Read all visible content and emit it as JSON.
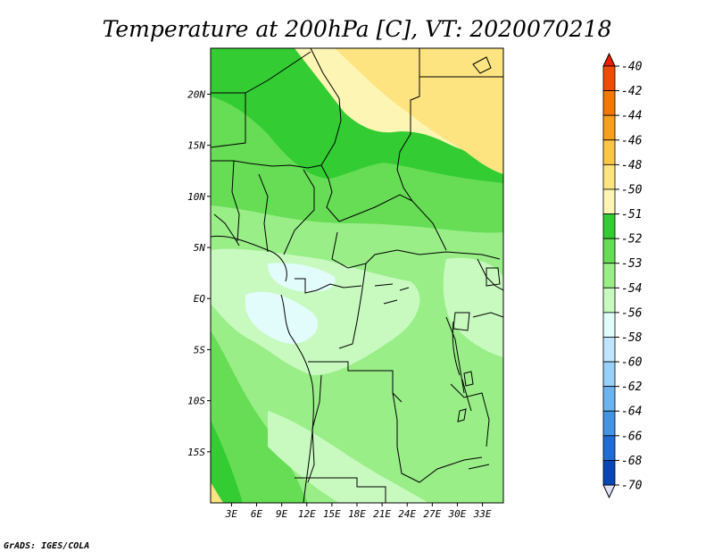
{
  "chart_data": {
    "type": "heatmap",
    "title": "Temperature at 200hPa [C], VT: 2020070218",
    "x_ticks": [
      "3E",
      "6E",
      "9E",
      "12E",
      "15E",
      "18E",
      "21E",
      "24E",
      "27E",
      "30E",
      "33E"
    ],
    "x_tick_values": [
      3,
      6,
      9,
      12,
      15,
      18,
      21,
      24,
      27,
      30,
      33
    ],
    "y_ticks": [
      "20N",
      "15N",
      "10N",
      "5N",
      "EQ",
      "5S",
      "10S",
      "15S"
    ],
    "y_tick_values": [
      20,
      15,
      10,
      5,
      0,
      -5,
      -10,
      -15
    ],
    "xlim": [
      0.5,
      35.5
    ],
    "ylim": [
      -20,
      24.5
    ],
    "colorbar": {
      "orientation": "vertical",
      "labels": [
        "-40",
        "-42",
        "-44",
        "-46",
        "-48",
        "-50",
        "-51",
        "-52",
        "-53",
        "-54",
        "-56",
        "-58",
        "-60",
        "-62",
        "-64",
        "-66",
        "-68",
        "-70"
      ],
      "colors": [
        "#e81e00",
        "#f04c00",
        "#f47800",
        "#f8a01c",
        "#fbc546",
        "#fde480",
        "#fdf5b4",
        "#33cc33",
        "#66dd55",
        "#99ee88",
        "#c8fac0",
        "#e2fcfc",
        "#bfe6fc",
        "#98d0f8",
        "#6cb4f0",
        "#4494e4",
        "#1e6cd4",
        "#0846b4",
        "#0a0a6e"
      ],
      "extend_top_color": "#e81e00",
      "extend_bottom_color": "#e2e2f6"
    },
    "regions": [
      {
        "value_bin": "-51 to -50",
        "color": "#fdf5b4",
        "area": "Sahara north of ~17N, central longitudes"
      },
      {
        "value_bin": "-50 to -48",
        "color": "#fde480",
        "area": "northeast corner, north of ~15N, east of ~23E"
      },
      {
        "value_bin": "-52 to -51",
        "color": "#33cc33",
        "area": "Sahel belt ~12N to 20N"
      },
      {
        "value_bin": "-53 to -52",
        "color": "#66dd55",
        "area": "~8N to 14N and southwest Atlantic strip"
      },
      {
        "value_bin": "-54 to -53",
        "color": "#99ee88",
        "area": "Gulf of Guinea to southern Africa interior"
      },
      {
        "value_bin": "-56 to -54",
        "color": "#c8fac0",
        "area": "Congo basin near equator and patches to 15S"
      }
    ]
  },
  "credit": "GrADS: IGES/COLA"
}
